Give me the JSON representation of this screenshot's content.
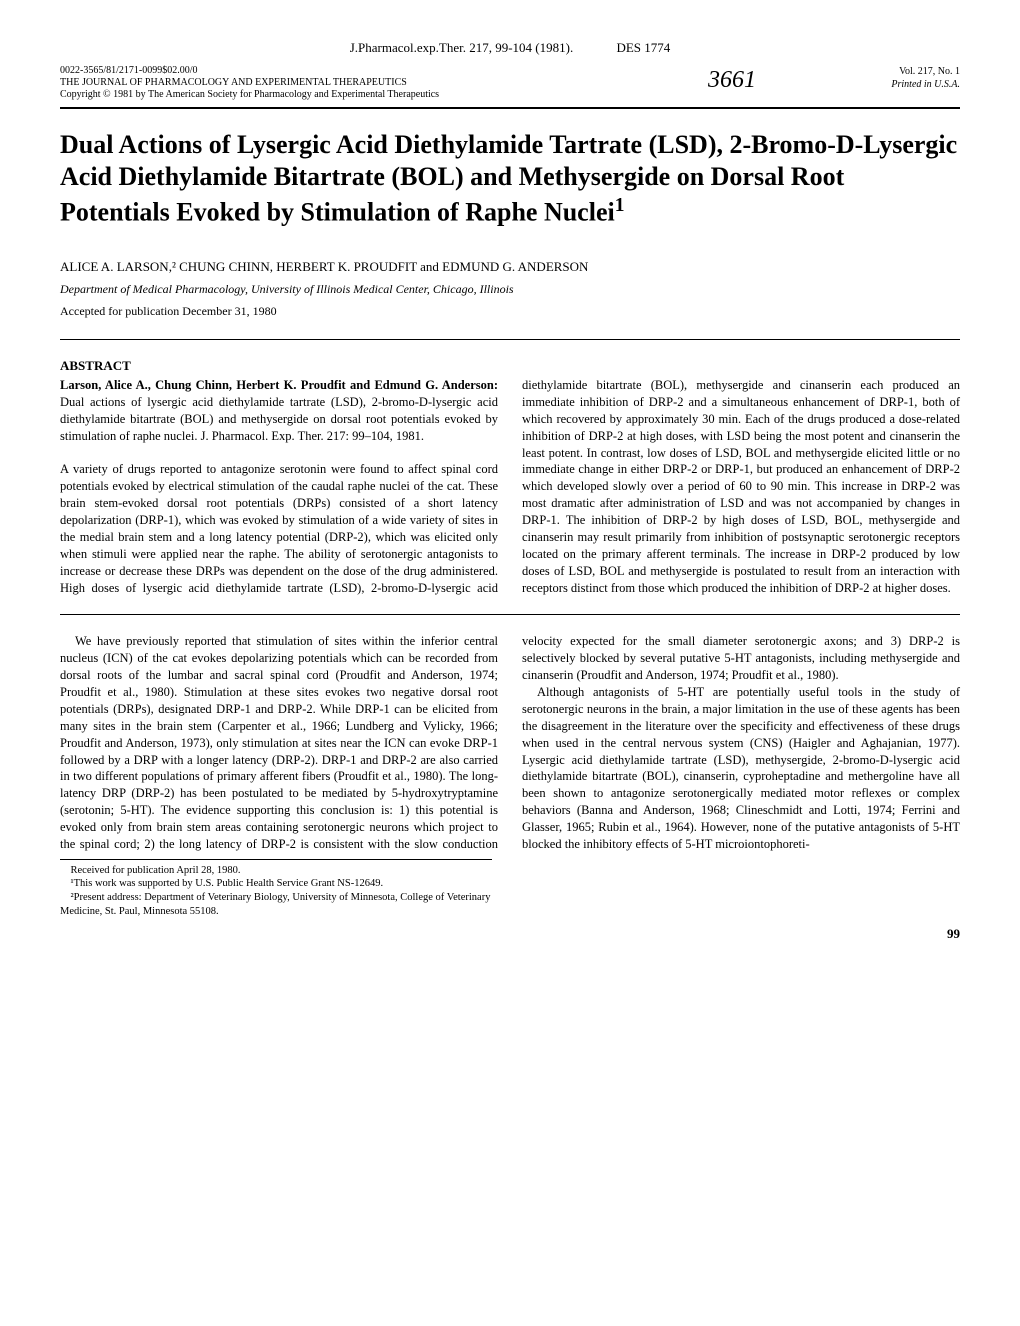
{
  "top_header": {
    "journal_ref": "J.Pharmacol.exp.Ther. 217, 99-104 (1981).",
    "des_code": "DES 1774"
  },
  "sub_header": {
    "issn_line": "0022-3565/81/2171-0099$02.00/0",
    "journal_name": "THE JOURNAL OF PHARMACOLOGY AND EXPERIMENTAL THERAPEUTICS",
    "copyright": "Copyright © 1981 by The American Society for Pharmacology and Experimental Therapeutics",
    "handwritten": "3661",
    "vol_line": "Vol. 217, No. 1",
    "printed_line": "Printed in U.S.A."
  },
  "title": "Dual Actions of Lysergic Acid Diethylamide Tartrate (LSD), 2-Bromo-D-Lysergic Acid Diethylamide Bitartrate (BOL) and Methysergide on Dorsal Root Potentials Evoked by Stimulation of Raphe Nuclei",
  "title_sup": "1",
  "authors": "ALICE A. LARSON,² CHUNG CHINN, HERBERT K. PROUDFIT and EDMUND G. ANDERSON",
  "affiliation": "Department of Medical Pharmacology, University of Illinois Medical Center, Chicago, Illinois",
  "accepted": "Accepted for publication December 31, 1980",
  "abstract_heading": "ABSTRACT",
  "abstract_lead": "Larson, Alice A., Chung Chinn, Herbert K. Proudfit and Edmund G. Anderson:",
  "abstract_p1_rest": " Dual actions of lysergic acid diethylamide tartrate (LSD), 2-bromo-D-lysergic acid diethylamide bitartrate (BOL) and methysergide on dorsal root potentials evoked by stimulation of raphe nuclei. J. Pharmacol. Exp. Ther. 217: 99–104, 1981.",
  "abstract_p2": "A variety of drugs reported to antagonize serotonin were found to affect spinal cord potentials evoked by electrical stimulation of the caudal raphe nuclei of the cat. These brain stem-evoked dorsal root potentials (DRPs) consisted of a short latency depolarization (DRP-1), which was evoked by stimulation of a wide variety of sites in the medial brain stem and a long latency potential (DRP-2), which was elicited only when stimuli were applied near the raphe. The ability of serotonergic antagonists to increase or decrease these DRPs was dependent on the dose of the drug administered. High doses of lysergic acid diethylamide tartrate (LSD), 2-bromo-D-lysergic acid diethylamide bitartrate (BOL), methysergide and cinanserin each produced an immediate inhibition of DRP-2 and a simultaneous enhancement of DRP-1, both of which recovered by approximately 30 min. Each of the drugs produced a dose-related inhibition of DRP-2 at high doses, with LSD being the most potent and cinanserin the least potent. In contrast, low doses of LSD, BOL and methysergide elicited little or no immediate change in either DRP-2 or DRP-1, but produced an enhancement of DRP-2 which developed slowly over a period of 60 to 90 min. This increase in DRP-2 was most dramatic after administration of LSD and was not accompanied by changes in DRP-1. The inhibition of DRP-2 by high doses of LSD, BOL, methysergide and cinanserin may result primarily from inhibition of postsynaptic serotonergic receptors located on the primary afferent terminals. The increase in DRP-2 produced by low doses of LSD, BOL and methysergide is postulated to result from an interaction with receptors distinct from those which produced the inhibition of DRP-2 at higher doses.",
  "body_p1": "We have previously reported that stimulation of sites within the inferior central nucleus (ICN) of the cat evokes depolarizing potentials which can be recorded from dorsal roots of the lumbar and sacral spinal cord (Proudfit and Anderson, 1974; Proudfit et al., 1980). Stimulation at these sites evokes two negative dorsal root potentials (DRPs), designated DRP-1 and DRP-2. While DRP-1 can be elicited from many sites in the brain stem (Carpenter et al., 1966; Lundberg and Vylicky, 1966; Proudfit and Anderson, 1973), only stimulation at sites near the ICN can evoke DRP-1 followed by a DRP with a longer latency (DRP-2). DRP-1 and DRP-2 are also carried in two different populations of primary afferent fibers (Proudfit et al., 1980). The long-latency DRP (DRP-2) has been postulated to be mediated by 5-hydroxytryptamine (serotonin; 5-HT). The evidence supporting this conclusion is: 1) this potential is evoked only from brain stem areas containing serotonergic neurons which project to the spinal cord; 2) the long latency of DRP-2 is consistent with the slow conduction velocity expected for the small diameter serotonergic axons; and 3) DRP-2 is selectively blocked by several putative 5-HT antagonists, including methysergide and cinanserin (Proudfit and Anderson, 1974; Proudfit et al., 1980).",
  "body_p2": "Although antagonists of 5-HT are potentially useful tools in the study of serotonergic neurons in the brain, a major limitation in the use of these agents has been the disagreement in the literature over the specificity and effectiveness of these drugs when used in the central nervous system (CNS) (Haigler and Aghajanian, 1977). Lysergic acid diethylamide tartrate (LSD), methysergide, 2-bromo-D-lysergic acid diethylamide bitartrate (BOL), cinanserin, cyproheptadine and methergoline have all been shown to antagonize serotonergically mediated motor reflexes or complex behaviors (Banna and Anderson, 1968; Clineschmidt and Lotti, 1974; Ferrini and Glasser, 1965; Rubin et al., 1964). However, none of the putative antagonists of 5-HT blocked the inhibitory effects of 5-HT microiontophoreti-",
  "footnotes": {
    "received": "Received for publication April 28, 1980.",
    "f1": "¹This work was supported by U.S. Public Health Service Grant NS-12649.",
    "f2": "²Present address: Department of Veterinary Biology, University of Minnesota, College of Veterinary Medicine, St. Paul, Minnesota 55108."
  },
  "page_number": "99"
}
